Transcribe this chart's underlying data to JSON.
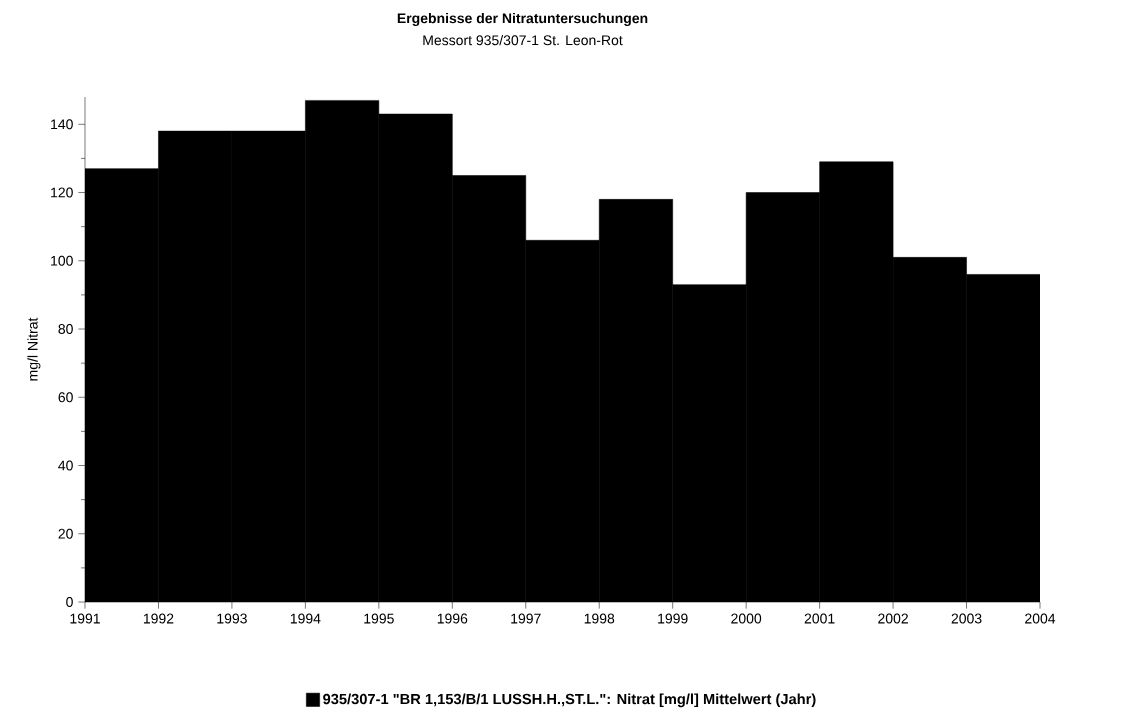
{
  "chart_data": {
    "type": "histogram",
    "title": "Ergebnisse der Nitratuntersuchungen",
    "subtitle": "Messort 935/307-1 St. Leon-Rot",
    "ylabel": "mg/l Nitrat",
    "bins": [
      1991,
      1992,
      1993,
      1994,
      1995,
      1996,
      1997,
      1998,
      1999,
      2000,
      2001,
      2002,
      2003,
      2004
    ],
    "series": [
      {
        "name": "935/307-1 \"BR 1,153/B/1 LUSSH.H.,ST.L.\": Nitrat [mg/l] Mittelwert (Jahr)",
        "color": "#000000",
        "values": [
          127,
          138,
          138,
          147,
          143,
          125,
          106,
          118,
          93,
          120,
          129,
          101,
          96
        ]
      }
    ],
    "xlim": [
      1991,
      2004
    ],
    "xticks": [
      1991,
      1992,
      1993,
      1994,
      1995,
      1996,
      1997,
      1998,
      1999,
      2000,
      2001,
      2002,
      2003,
      2004
    ],
    "ylim": [
      0,
      148
    ],
    "yticks": [
      0,
      {
        "value": 10,
        "label": null
      },
      20,
      {
        "value": 30,
        "label": null
      },
      40,
      {
        "value": 50,
        "label": null
      },
      60,
      {
        "value": 70,
        "label": null
      },
      80,
      {
        "value": 90,
        "label": null
      },
      100,
      {
        "value": 110,
        "label": null
      },
      120,
      {
        "value": 130,
        "label": null
      },
      140
    ],
    "legend": "bottom"
  }
}
